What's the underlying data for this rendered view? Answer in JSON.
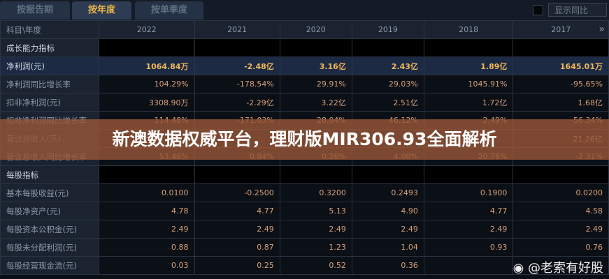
{
  "tabs": [
    "按报告期",
    "按年度",
    "按单季度"
  ],
  "active_tab": "按年度",
  "yoy_label": "显示同比",
  "header": {
    "label": "科目\\年度",
    "years": [
      "2022",
      "2021",
      "2020",
      "2019",
      "2018",
      "2017"
    ],
    "more": "»"
  },
  "rows": [
    {
      "type": "sec",
      "label": "成长能力指标",
      "values": [
        "",
        "",
        "",
        "",
        "",
        ""
      ]
    },
    {
      "type": "hl",
      "label": "净利润(元)",
      "values": [
        "1064.84万",
        "-2.48亿",
        "3.16亿",
        "2.43亿",
        "1.89亿",
        "1645.01万"
      ]
    },
    {
      "type": "",
      "label": "净利润同比增长率",
      "values": [
        "104.29%",
        "-178.54%",
        "29.91%",
        "29.03%",
        "1045.91%",
        "-95.65%"
      ]
    },
    {
      "type": "",
      "label": "扣非净利润(元)",
      "values": [
        "3308.90万",
        "-2.29亿",
        "3.22亿",
        "2.51亿",
        "1.72亿",
        "1.68亿"
      ]
    },
    {
      "type": "",
      "label": "扣非净利润同比增长率",
      "values": [
        "114.48%",
        "-171.03%",
        "28.04%",
        "46.12%",
        "2.49%",
        "-56.34%"
      ]
    },
    {
      "type": "",
      "label": "营业总收入(元)",
      "values": [
        "",
        "",
        "",
        "",
        "",
        "21.26亿"
      ]
    },
    {
      "type": "",
      "label": "营业总收入同比增长率",
      "values": [
        "53.46%",
        "0.84%",
        "0.26%",
        "4.00%",
        "20.76%",
        "-2.31%"
      ]
    },
    {
      "type": "sec",
      "label": "每股指标",
      "values": [
        "",
        "",
        "",
        "",
        "",
        ""
      ]
    },
    {
      "type": "",
      "label": "基本每股收益(元)",
      "values": [
        "0.0100",
        "-0.2500",
        "0.3200",
        "0.2493",
        "0.1900",
        "0.0200"
      ]
    },
    {
      "type": "",
      "label": "每股净资产(元)",
      "values": [
        "4.78",
        "4.77",
        "5.13",
        "4.90",
        "4.77",
        "4.58"
      ]
    },
    {
      "type": "",
      "label": "每股资本公积金(元)",
      "values": [
        "2.49",
        "2.49",
        "2.49",
        "2.49",
        "2.49",
        "2.49"
      ]
    },
    {
      "type": "",
      "label": "每股未分配利润(元)",
      "values": [
        "0.88",
        "0.87",
        "1.23",
        "1.04",
        "0.93",
        "0.76"
      ]
    },
    {
      "type": "",
      "label": "每股经营现金流(元)",
      "values": [
        "0.03",
        "0.25",
        "0.52",
        "0.36",
        "",
        ""
      ]
    }
  ],
  "banner": "新澳数据权威平台，理财版MIR306.93全面解析",
  "watermark": "@老索有好股"
}
